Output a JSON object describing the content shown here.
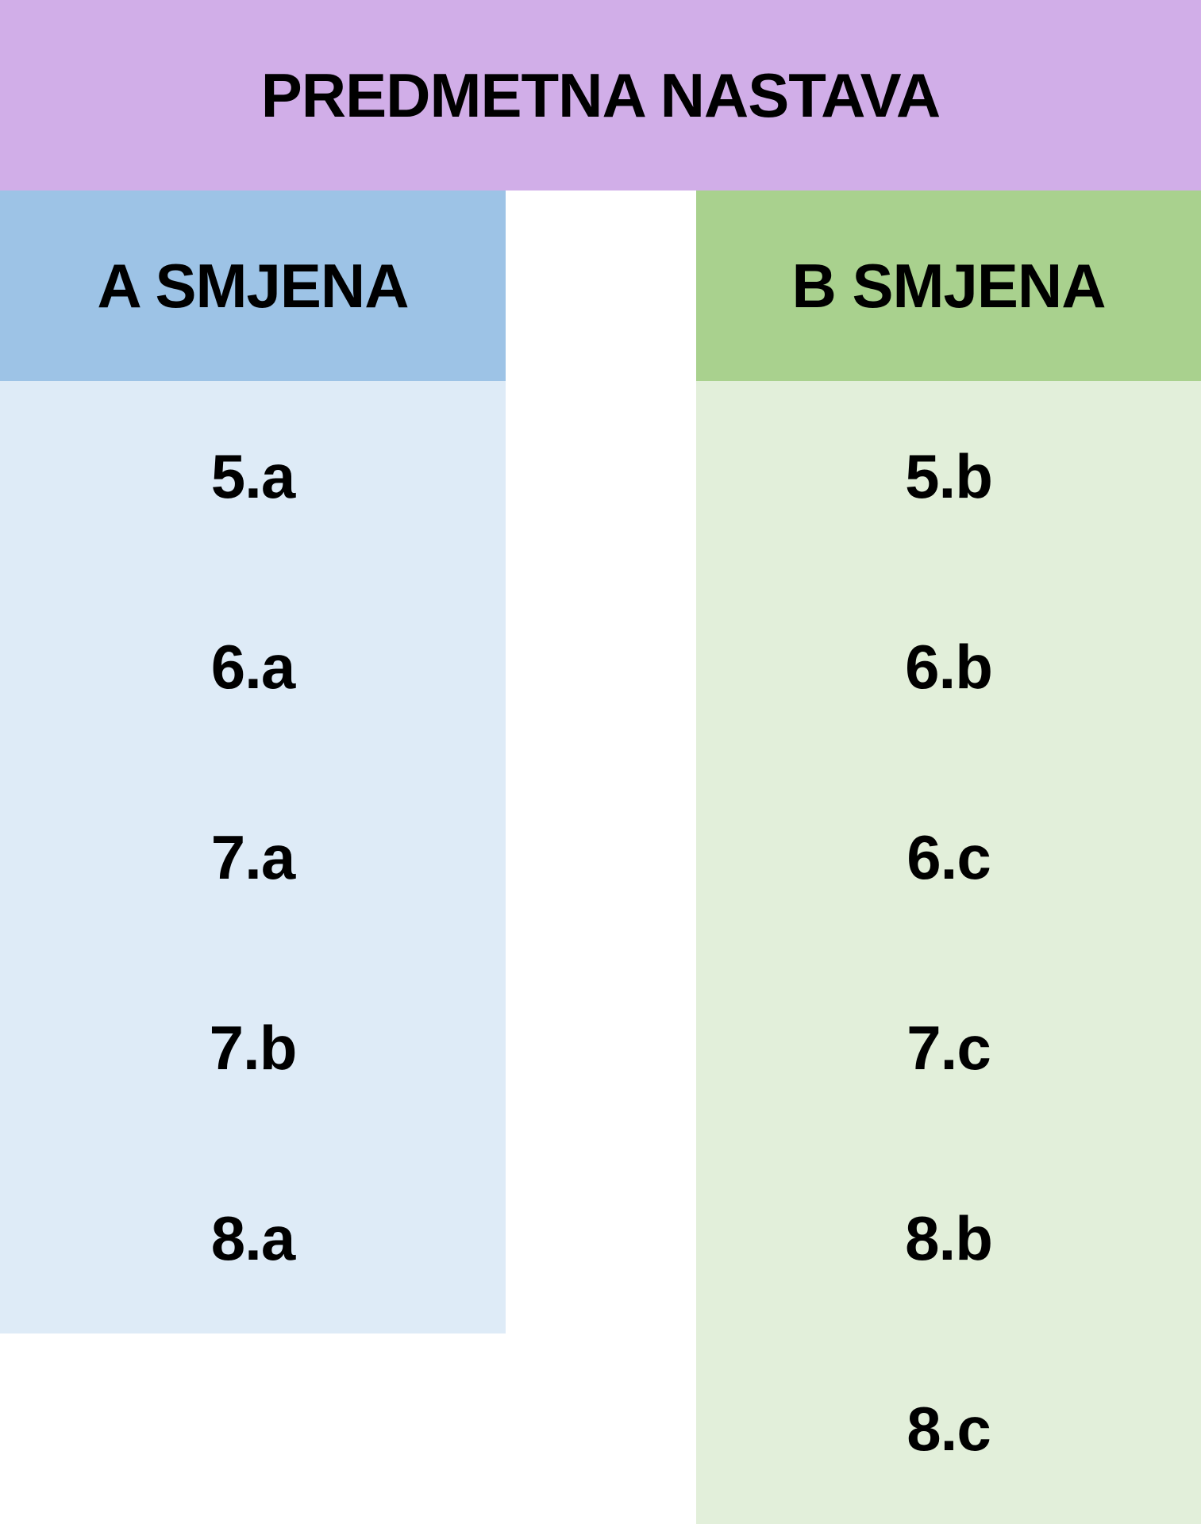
{
  "header": {
    "title": "PREDMETNA NASTAVA"
  },
  "columns": [
    {
      "header": "A SMJENA",
      "items": [
        "5.a",
        "6.a",
        "7.a",
        "7.b",
        "8.a"
      ]
    },
    {
      "header": "B SMJENA",
      "items": [
        "5.b",
        "6.b",
        "6.c",
        "7.c",
        "8.b",
        "8.c"
      ]
    }
  ]
}
